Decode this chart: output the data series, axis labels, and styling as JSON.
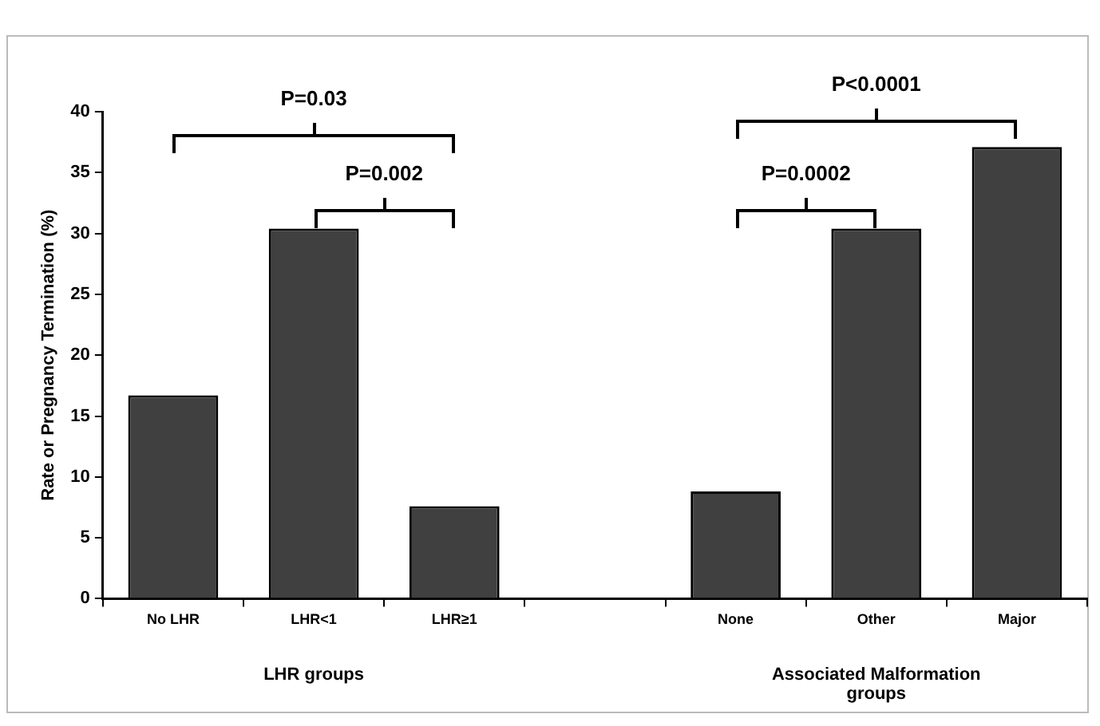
{
  "chart_data": {
    "type": "bar",
    "categories": [
      "No LHR",
      "LHR<1",
      "LHR≥1",
      null,
      "None",
      "Other",
      "Major"
    ],
    "values": [
      16.7,
      30.4,
      7.6,
      null,
      8.8,
      30.4,
      37.1
    ],
    "color": "#404040",
    "ylabel": "Rate or Pregnancy Termination (%)",
    "ylim": [
      0,
      40
    ],
    "yticks": [
      0,
      5,
      10,
      15,
      20,
      25,
      30,
      35,
      40
    ],
    "grid": false,
    "legend": false,
    "annotations": [
      "P=0.03",
      "P=0.002",
      "P=0.0002",
      "P<0.0001",
      "LHR groups",
      "Associated Malformation groups"
    ]
  }
}
